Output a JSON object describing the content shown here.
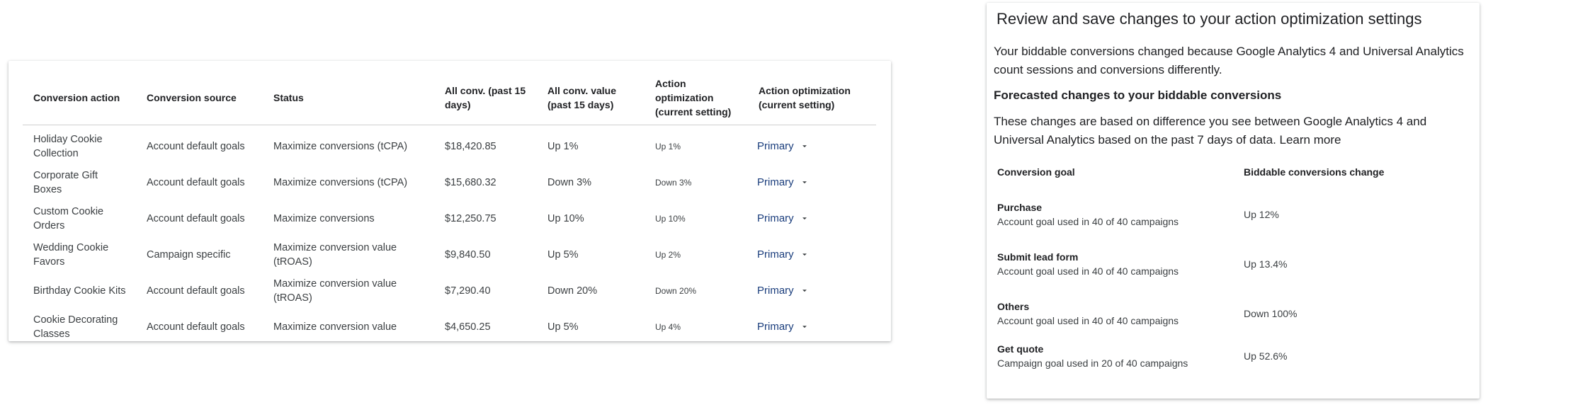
{
  "table": {
    "headers": [
      "Conversion action",
      "Conversion source",
      "Status",
      "All conv. (past 15 days)",
      "All conv. value (past 15 days)",
      "Action optimization (current setting)",
      "Action optimization (current setting)"
    ],
    "rows": [
      {
        "action": "Holiday Cookie Collection",
        "source": "Account default goals",
        "status": "Maximize conversions (tCPA)",
        "all_conv": "$18,420.85",
        "value": "Up 1%",
        "opt_change": "Up 1%",
        "setting": "Primary"
      },
      {
        "action": "Corporate Gift Boxes",
        "source": "Account default goals",
        "status": "Maximize conversions (tCPA)",
        "all_conv": "$15,680.32",
        "value": "Down 3%",
        "opt_change": "Down 3%",
        "setting": "Primary"
      },
      {
        "action": "Custom Cookie Orders",
        "source": "Account default goals",
        "status": "Maximize conversions",
        "all_conv": "$12,250.75",
        "value": "Up 10%",
        "opt_change": "Up 10%",
        "setting": "Primary"
      },
      {
        "action": "Wedding Cookie Favors",
        "source": "Campaign specific",
        "status": "Maximize conversion value (tROAS)",
        "all_conv": "$9,840.50",
        "value": "Up 5%",
        "opt_change": "Up 2%",
        "setting": "Primary"
      },
      {
        "action": "Birthday Cookie Kits",
        "source": "Account default goals",
        "status": "Maximize conversion value (tROAS)",
        "all_conv": "$7,290.40",
        "value": "Down 20%",
        "opt_change": "Down 20%",
        "setting": "Primary"
      },
      {
        "action": "Cookie Decorating Classes",
        "source": "Account default goals",
        "status": "Maximize conversion value",
        "all_conv": "$4,650.25",
        "value": "Up 5%",
        "opt_change": "Up 4%",
        "setting": "Primary"
      }
    ]
  },
  "panel": {
    "title": "Review and save changes to your action optimization settings",
    "intro": "Your biddable conversions changed because Google Analytics 4 and Universal Analytics count sessions and conversions differently.",
    "subhead": "Forecasted changes to your biddable conversions",
    "desc": "These changes are based on difference you see between Google Analytics 4 and Universal Analytics based on the past 7 days of data. Learn more",
    "col_goal": "Conversion goal",
    "col_change": "Biddable conversions change",
    "goals": [
      {
        "name": "Purchase",
        "sub": "Account goal used in 40 of 40 campaigns",
        "change": "Up 12%"
      },
      {
        "name": "Submit lead form",
        "sub": "Account goal used in 40 of 40 campaigns",
        "change": "Up 13.4%"
      },
      {
        "name": "Others",
        "sub": "Account goal used in 40 of 40 campaigns",
        "change": "Down 100%"
      },
      {
        "name": "Get quote",
        "sub": "Campaign goal used in 20 of 40 campaigns",
        "change": "Up 52.6%"
      }
    ]
  },
  "icons": {
    "dropdown": "chevron-down-icon"
  },
  "colors": {
    "primary_link": "#1a3d7c"
  }
}
